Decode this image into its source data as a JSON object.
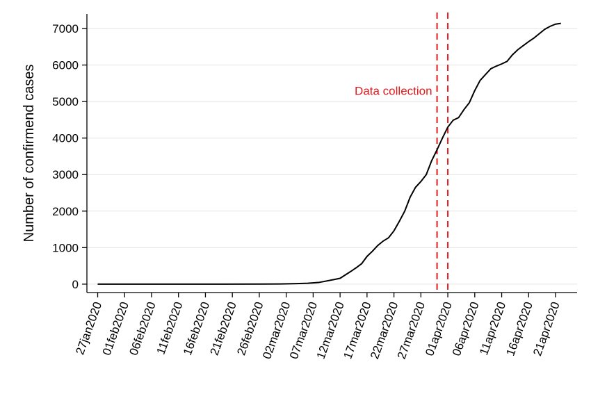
{
  "chart_data": {
    "type": "line",
    "title": "",
    "xlabel": "",
    "ylabel": "Number of confirmend cases",
    "x_tick_labels": [
      "27jan2020",
      "01feb2020",
      "06feb2020",
      "11feb2020",
      "16feb2020",
      "21feb2020",
      "26feb2020",
      "02mar2020",
      "07mar2020",
      "12mar2020",
      "17mar2020",
      "22mar2020",
      "27mar2020",
      "01apr2020",
      "06apr2020",
      "11apr2020",
      "16apr2020",
      "21apr2020"
    ],
    "y_ticks": [
      0,
      1000,
      2000,
      3000,
      4000,
      5000,
      6000,
      7000
    ],
    "ylim": [
      -230,
      7400
    ],
    "xlim": [
      "25jan2020",
      "25apr2020"
    ],
    "grid": "horizontal",
    "line_color": "#000000",
    "series": [
      {
        "x": [
          "27jan2020",
          "02feb2020",
          "10feb2020",
          "20feb2020",
          "01mar2020",
          "04mar2020",
          "06mar2020",
          "08mar2020",
          "10mar2020",
          "12mar2020",
          "14mar2020",
          "15mar2020",
          "16mar2020",
          "17mar2020",
          "18mar2020",
          "19mar2020",
          "20mar2020",
          "21mar2020",
          "22mar2020",
          "23mar2020",
          "24mar2020",
          "25mar2020",
          "26mar2020",
          "27mar2020",
          "28mar2020",
          "29mar2020",
          "30mar2020",
          "31mar2020",
          "01apr2020",
          "02apr2020",
          "03apr2020",
          "04apr2020",
          "05apr2020",
          "06apr2020",
          "07apr2020",
          "08apr2020",
          "09apr2020",
          "10apr2020",
          "11apr2020",
          "12apr2020",
          "13apr2020",
          "14apr2020",
          "15apr2020",
          "16apr2020",
          "17apr2020",
          "18apr2020",
          "19apr2020",
          "20apr2020",
          "21apr2020",
          "22apr2020"
        ],
        "values": [
          0,
          0,
          0,
          0,
          5,
          15,
          25,
          45,
          100,
          160,
          350,
          450,
          560,
          760,
          900,
          1060,
          1180,
          1270,
          1460,
          1720,
          2000,
          2380,
          2650,
          2810,
          3000,
          3380,
          3680,
          4000,
          4300,
          4490,
          4560,
          4780,
          4970,
          5300,
          5580,
          5740,
          5900,
          5970,
          6030,
          6100,
          6280,
          6420,
          6530,
          6640,
          6740,
          6860,
          6980,
          7060,
          7120,
          7140
        ]
      }
    ],
    "annotations": [
      {
        "text": "Data collection",
        "color": "#e31a1c",
        "x_lines": [
          "30mar2020",
          "01apr2020"
        ]
      }
    ]
  }
}
